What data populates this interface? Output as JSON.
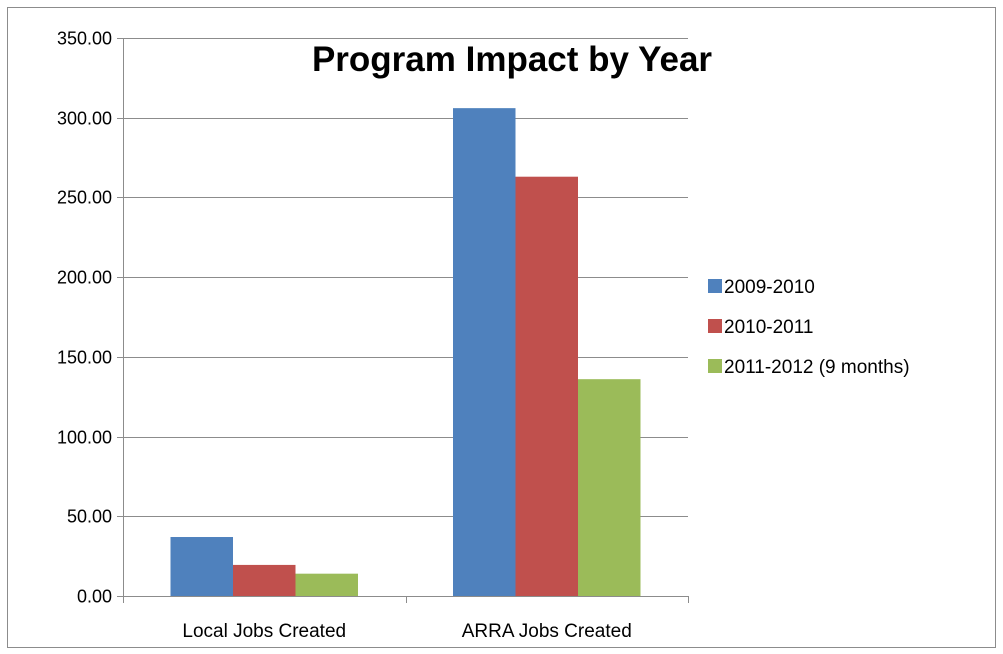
{
  "chart_data": {
    "type": "bar",
    "title": "Program Impact by Year",
    "categories": [
      "Local Jobs Created",
      "ARRA Jobs Created"
    ],
    "series": [
      {
        "name": "2009-2010",
        "color": "#4F81BD",
        "values": [
          37.0,
          306.0
        ]
      },
      {
        "name": "2010-2011",
        "color": "#C0504D",
        "values": [
          19.5,
          263.0
        ]
      },
      {
        "name": "2011-2012 (9 months)",
        "color": "#9BBB59",
        "values": [
          14.0,
          136.0
        ]
      }
    ],
    "ylim": [
      0,
      350
    ],
    "yticks": [
      "0.00",
      "50.00",
      "100.00",
      "150.00",
      "200.00",
      "250.00",
      "300.00",
      "350.00"
    ],
    "grid": true,
    "legend_position": "right"
  }
}
